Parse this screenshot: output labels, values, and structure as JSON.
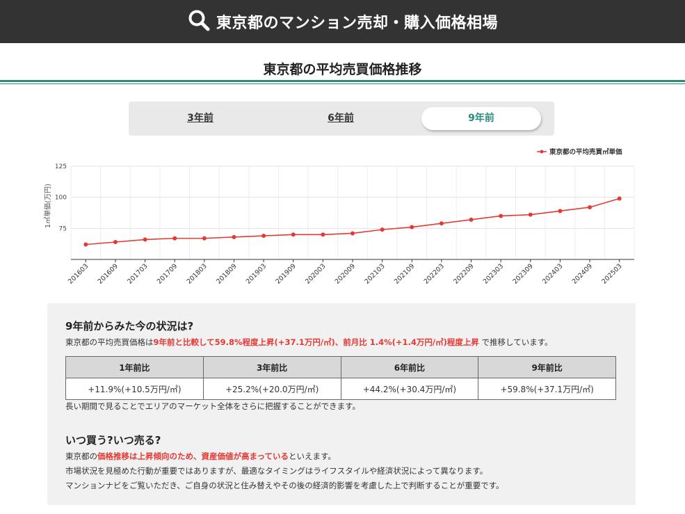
{
  "header": {
    "title": "東京都のマンション売却・購入価格相場",
    "icon": "search-icon"
  },
  "section": {
    "title": "東京都の平均売買価格推移"
  },
  "tabs": [
    {
      "label": "3年前",
      "active": false
    },
    {
      "label": "6年前",
      "active": false
    },
    {
      "label": "9年前",
      "active": true
    }
  ],
  "chart_data": {
    "type": "line",
    "x": [
      "201603",
      "201609",
      "201703",
      "201709",
      "201803",
      "201809",
      "201903",
      "201909",
      "202003",
      "202009",
      "202103",
      "202109",
      "202203",
      "202209",
      "202303",
      "202309",
      "202403",
      "202409",
      "202503"
    ],
    "series": [
      {
        "name": "東京都の平均売買㎡単価",
        "color": "#e53935",
        "values": [
          62,
          64,
          66,
          67,
          67,
          68,
          69,
          70,
          70,
          71,
          74,
          76,
          79,
          82,
          85,
          86,
          89,
          92,
          99
        ]
      }
    ],
    "ylabel": "1㎡単価(万円)",
    "yticks": [
      75,
      100,
      125
    ],
    "ylim": [
      50,
      125
    ],
    "grid": true,
    "legend": "top-right"
  },
  "status": {
    "heading": "9年前からみた今の状況は?",
    "line_prefix": "東京都の平均売買価格は",
    "line_highlight": "9年前と比較して59.8%程度上昇(+37.1万円/㎡)、前月比 1.4%(+1.4万円/㎡)程度上昇",
    "line_suffix": " で推移しています。"
  },
  "comparison": {
    "headers": [
      "1年前比",
      "3年前比",
      "6年前比",
      "9年前比"
    ],
    "values": [
      "+11.9%(+10.5万円/㎡)",
      "+25.2%(+20.0万円/㎡)",
      "+44.2%(+30.4万円/㎡)",
      "+59.8%(+37.1万円/㎡)"
    ],
    "note": "長い期間で見ることでエリアのマーケット全体をさらに把握することができます。"
  },
  "advice": {
    "heading": "いつ買う?いつ売る?",
    "line1_prefix": "東京都の",
    "line1_highlight": "価格推移は上昇傾向のため、資産価値が高まっている",
    "line1_suffix": "といえます。",
    "line2": "市場状況を見極めた行動が重要ではありますが、最適なタイミングはライフスタイルや経済状況によって異なります。",
    "line3": "マンションナビをご覧いただき、ご自身の状況と住み替えやその後の経済的影響を考慮した上で判断することが重要です。"
  }
}
